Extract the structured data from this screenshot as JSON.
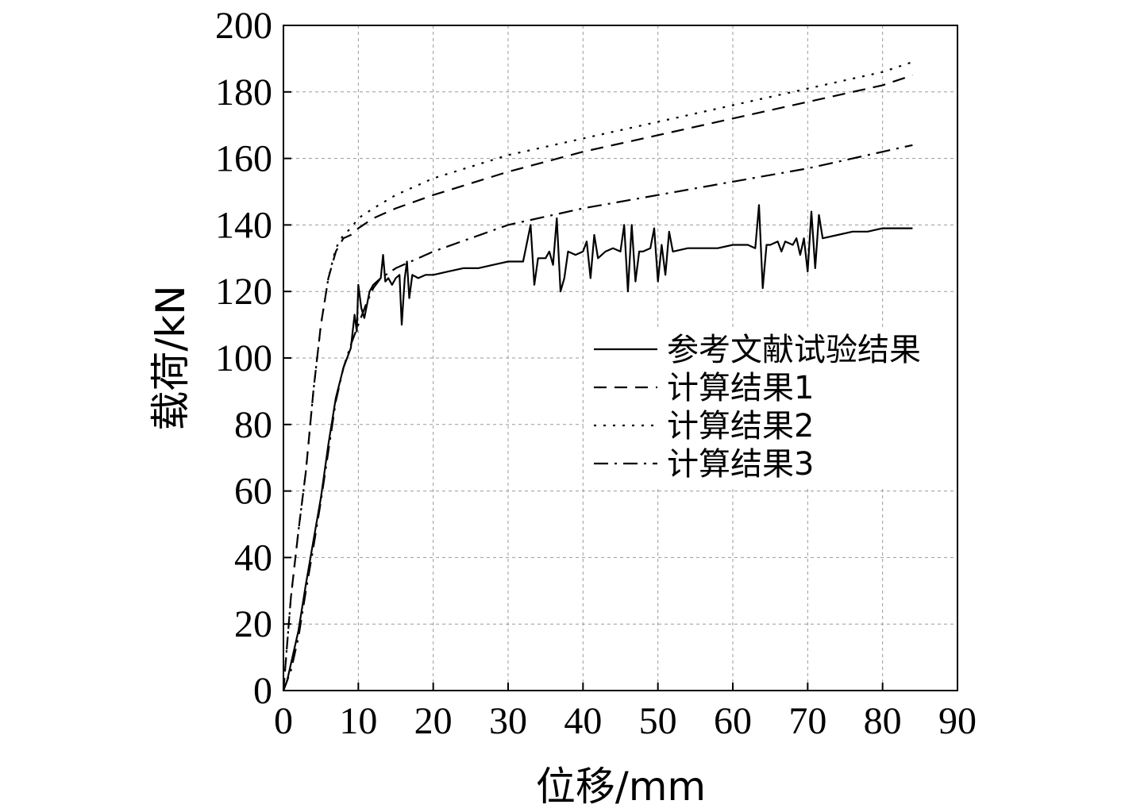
{
  "chart_data": {
    "type": "line",
    "xlabel": "位移/mm",
    "ylabel": "载荷/kN",
    "xlim": [
      0,
      90
    ],
    "ylim": [
      0,
      200
    ],
    "xticks": [
      0,
      10,
      20,
      30,
      40,
      50,
      60,
      70,
      80,
      90
    ],
    "yticks": [
      0,
      20,
      40,
      60,
      80,
      100,
      120,
      140,
      160,
      180,
      200
    ],
    "grid": true,
    "legend_position": "right-middle",
    "series": [
      {
        "name": "参考文献试验结果",
        "style": "solid",
        "points": [
          [
            0,
            0
          ],
          [
            0.5,
            3
          ],
          [
            1,
            8
          ],
          [
            2,
            18
          ],
          [
            3,
            32
          ],
          [
            4,
            45
          ],
          [
            5,
            58
          ],
          [
            6,
            74
          ],
          [
            7,
            88
          ],
          [
            8,
            97
          ],
          [
            9,
            103
          ],
          [
            9.5,
            113
          ],
          [
            9.8,
            108
          ],
          [
            10,
            122
          ],
          [
            10.4,
            115
          ],
          [
            10.8,
            112
          ],
          [
            11.5,
            120
          ],
          [
            12,
            122
          ],
          [
            12.5,
            123
          ],
          [
            13,
            124
          ],
          [
            13.3,
            131
          ],
          [
            13.6,
            123
          ],
          [
            14,
            124
          ],
          [
            14.5,
            122
          ],
          [
            15,
            124
          ],
          [
            15.5,
            125
          ],
          [
            15.8,
            110
          ],
          [
            16.2,
            124
          ],
          [
            16.5,
            129
          ],
          [
            16.8,
            118
          ],
          [
            17.2,
            125
          ],
          [
            18,
            124
          ],
          [
            19,
            125
          ],
          [
            20,
            125
          ],
          [
            22,
            126
          ],
          [
            24,
            127
          ],
          [
            26,
            127
          ],
          [
            28,
            128
          ],
          [
            30,
            129
          ],
          [
            32,
            129
          ],
          [
            33,
            140
          ],
          [
            33.5,
            122
          ],
          [
            34,
            130
          ],
          [
            35,
            130
          ],
          [
            35.5,
            132
          ],
          [
            36,
            128
          ],
          [
            36.5,
            142
          ],
          [
            37,
            120
          ],
          [
            37.5,
            124
          ],
          [
            38,
            132
          ],
          [
            39,
            131
          ],
          [
            40,
            132
          ],
          [
            40.5,
            135
          ],
          [
            41,
            124
          ],
          [
            41.5,
            137
          ],
          [
            42,
            130
          ],
          [
            43,
            132
          ],
          [
            44,
            133
          ],
          [
            45,
            132
          ],
          [
            45.5,
            140
          ],
          [
            46,
            120
          ],
          [
            46.5,
            140
          ],
          [
            47,
            123
          ],
          [
            47.5,
            132
          ],
          [
            48,
            132
          ],
          [
            49,
            133
          ],
          [
            49.5,
            139
          ],
          [
            50,
            123
          ],
          [
            50.5,
            134
          ],
          [
            51,
            125
          ],
          [
            51.5,
            138
          ],
          [
            52,
            132
          ],
          [
            54,
            133
          ],
          [
            56,
            133
          ],
          [
            58,
            133
          ],
          [
            60,
            134
          ],
          [
            62,
            134
          ],
          [
            63,
            133
          ],
          [
            63.5,
            146
          ],
          [
            64,
            121
          ],
          [
            64.5,
            134
          ],
          [
            65,
            134
          ],
          [
            66,
            135
          ],
          [
            66.5,
            132
          ],
          [
            67,
            135
          ],
          [
            68,
            134
          ],
          [
            68.5,
            136
          ],
          [
            69,
            131
          ],
          [
            69.5,
            136
          ],
          [
            70,
            126
          ],
          [
            70.5,
            144
          ],
          [
            71,
            127
          ],
          [
            71.5,
            143
          ],
          [
            72,
            136
          ],
          [
            74,
            137
          ],
          [
            76,
            138
          ],
          [
            78,
            138
          ],
          [
            80,
            139
          ],
          [
            82,
            139
          ],
          [
            84,
            139
          ]
        ]
      },
      {
        "name": "计算结果1",
        "style": "dash",
        "points": [
          [
            0,
            0
          ],
          [
            1,
            28
          ],
          [
            2,
            48
          ],
          [
            3,
            66
          ],
          [
            4,
            90
          ],
          [
            5,
            110
          ],
          [
            6,
            124
          ],
          [
            7,
            132
          ],
          [
            8,
            136
          ],
          [
            9,
            137
          ],
          [
            10,
            139
          ],
          [
            12,
            142
          ],
          [
            15,
            145
          ],
          [
            20,
            149
          ],
          [
            30,
            156
          ],
          [
            40,
            162
          ],
          [
            50,
            167
          ],
          [
            60,
            172
          ],
          [
            70,
            177
          ],
          [
            80,
            182
          ],
          [
            84,
            185
          ]
        ]
      },
      {
        "name": "计算结果2",
        "style": "dot",
        "points": [
          [
            0,
            0
          ],
          [
            1,
            28
          ],
          [
            2,
            48
          ],
          [
            3,
            66
          ],
          [
            4,
            90
          ],
          [
            5,
            110
          ],
          [
            6,
            124
          ],
          [
            7,
            133
          ],
          [
            8,
            137
          ],
          [
            9,
            139
          ],
          [
            10,
            142
          ],
          [
            12,
            145
          ],
          [
            15,
            149
          ],
          [
            20,
            154
          ],
          [
            30,
            161
          ],
          [
            40,
            166
          ],
          [
            50,
            171
          ],
          [
            60,
            176
          ],
          [
            70,
            181
          ],
          [
            80,
            186
          ],
          [
            84,
            189
          ]
        ]
      },
      {
        "name": "计算结果3",
        "style": "dashdot",
        "points": [
          [
            0,
            0
          ],
          [
            1,
            6
          ],
          [
            2,
            16
          ],
          [
            3,
            30
          ],
          [
            4,
            43
          ],
          [
            5,
            57
          ],
          [
            6,
            72
          ],
          [
            7,
            87
          ],
          [
            8,
            97
          ],
          [
            9,
            104
          ],
          [
            10,
            110
          ],
          [
            11,
            116
          ],
          [
            12,
            121
          ],
          [
            13,
            124
          ],
          [
            15,
            127
          ],
          [
            20,
            132
          ],
          [
            30,
            140
          ],
          [
            40,
            145
          ],
          [
            50,
            149
          ],
          [
            60,
            153
          ],
          [
            70,
            157
          ],
          [
            80,
            162
          ],
          [
            84,
            164
          ]
        ]
      }
    ]
  }
}
